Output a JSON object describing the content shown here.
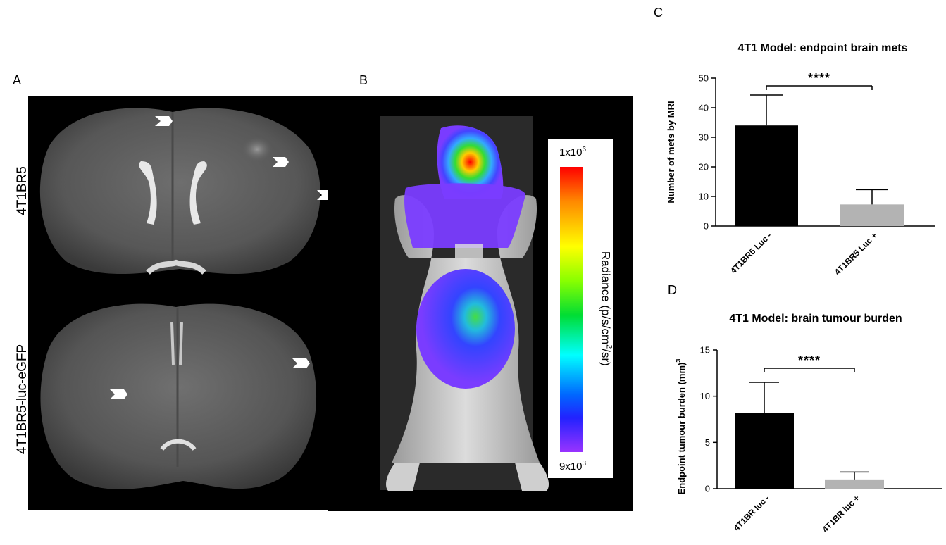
{
  "panels": {
    "a": {
      "letter": "A",
      "top_label": "4T1BR5",
      "bottom_label": "4T1BR5-luc-eGFP"
    },
    "b": {
      "letter": "B",
      "colorbar": {
        "max_base": "1x10",
        "max_exp": "6",
        "min_base": "9x10",
        "min_exp": "3",
        "label_pre": "Radiance (p/s/cm",
        "label_exp": "2",
        "label_post": "/sr)"
      }
    },
    "c": {
      "letter": "C"
    },
    "d": {
      "letter": "D"
    }
  },
  "chart_data": [
    {
      "type": "bar",
      "title": "4T1 Model: endpoint brain mets",
      "ylabel": "Number of mets by MRI",
      "xlabel": "",
      "categories": [
        "4T1BR5 Luc -",
        "4T1BR5 Luc +"
      ],
      "values": [
        34,
        7.3
      ],
      "errors": [
        10.3,
        5
      ],
      "colors": [
        "#000000",
        "#b3b3b3"
      ],
      "ylim": [
        0,
        50
      ],
      "yticks": [
        0,
        10,
        20,
        30,
        40,
        50
      ],
      "significance": "****"
    },
    {
      "type": "bar",
      "title": "4T1 Model: brain tumour burden",
      "ylabel": "Endpoint tumour burden (mm)",
      "ylabel_sup": "3",
      "xlabel": "",
      "categories": [
        "4T1BR luc -",
        "4T1BR luc +"
      ],
      "values": [
        8.2,
        1.0
      ],
      "errors": [
        3.3,
        0.8
      ],
      "colors": [
        "#000000",
        "#b3b3b3"
      ],
      "ylim": [
        0,
        15
      ],
      "yticks": [
        0,
        5,
        10,
        15
      ],
      "significance": "****"
    }
  ]
}
